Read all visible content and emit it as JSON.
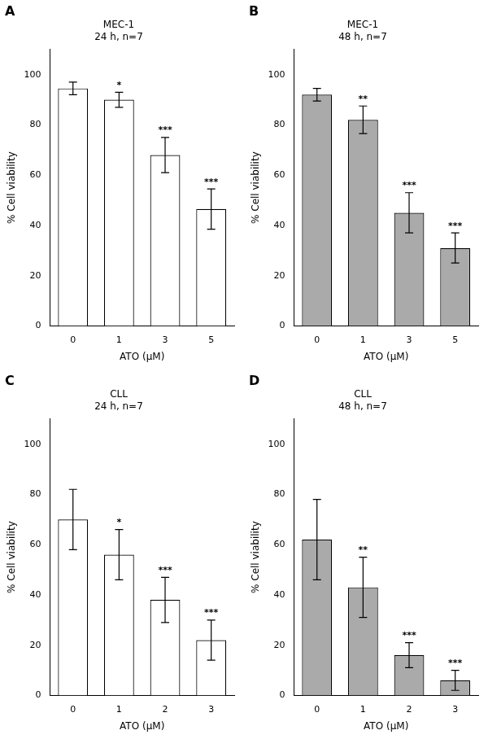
{
  "chart_data": [
    {
      "type": "bar",
      "panel_label": "A",
      "title": "MEC-1\n24 h, n=7",
      "categories": [
        "0",
        "1",
        "3",
        "5"
      ],
      "values": [
        94.5,
        90.0,
        68.0,
        46.5
      ],
      "errors": [
        2.5,
        3.0,
        7.0,
        8.0
      ],
      "sig_labels": [
        null,
        "*",
        "***",
        "***"
      ],
      "color": "white",
      "xlabel": "ATO (μM)",
      "ylabel": "% Cell viability",
      "ylim": [
        0,
        110
      ],
      "yticks": [
        0,
        20,
        40,
        60,
        80,
        100
      ],
      "grid": false
    },
    {
      "type": "bar",
      "panel_label": "B",
      "title": "MEC-1\n48 h, n=7",
      "categories": [
        "0",
        "1",
        "3",
        "5"
      ],
      "values": [
        92.0,
        82.0,
        45.0,
        31.0
      ],
      "errors": [
        2.5,
        5.5,
        8.0,
        6.0
      ],
      "sig_labels": [
        null,
        "**",
        "***",
        "***"
      ],
      "color": "#aaaaaa",
      "xlabel": "ATO (μM)",
      "ylabel": "% Cell viability",
      "ylim": [
        0,
        110
      ],
      "yticks": [
        0,
        20,
        40,
        60,
        80,
        100
      ],
      "grid": false
    },
    {
      "type": "bar",
      "panel_label": "C",
      "title": "CLL\n24 h, n=7",
      "categories": [
        "0",
        "1",
        "2",
        "3"
      ],
      "values": [
        70.0,
        56.0,
        38.0,
        22.0
      ],
      "errors": [
        12.0,
        10.0,
        9.0,
        8.0
      ],
      "sig_labels": [
        null,
        "*",
        "***",
        "***"
      ],
      "color": "white",
      "xlabel": "ATO (μM)",
      "ylabel": "% Cell viability",
      "ylim": [
        0,
        110
      ],
      "yticks": [
        0,
        20,
        40,
        60,
        80,
        100
      ],
      "grid": false
    },
    {
      "type": "bar",
      "panel_label": "D",
      "title": "CLL\n48 h, n=7",
      "categories": [
        "0",
        "1",
        "2",
        "3"
      ],
      "values": [
        62.0,
        43.0,
        16.0,
        6.0
      ],
      "errors": [
        16.0,
        12.0,
        5.0,
        4.0
      ],
      "sig_labels": [
        null,
        "**",
        "***",
        "***"
      ],
      "color": "#aaaaaa",
      "xlabel": "ATO (μM)",
      "ylabel": "% Cell viability",
      "ylim": [
        0,
        110
      ],
      "yticks": [
        0,
        20,
        40,
        60,
        80,
        100
      ],
      "grid": false
    }
  ]
}
